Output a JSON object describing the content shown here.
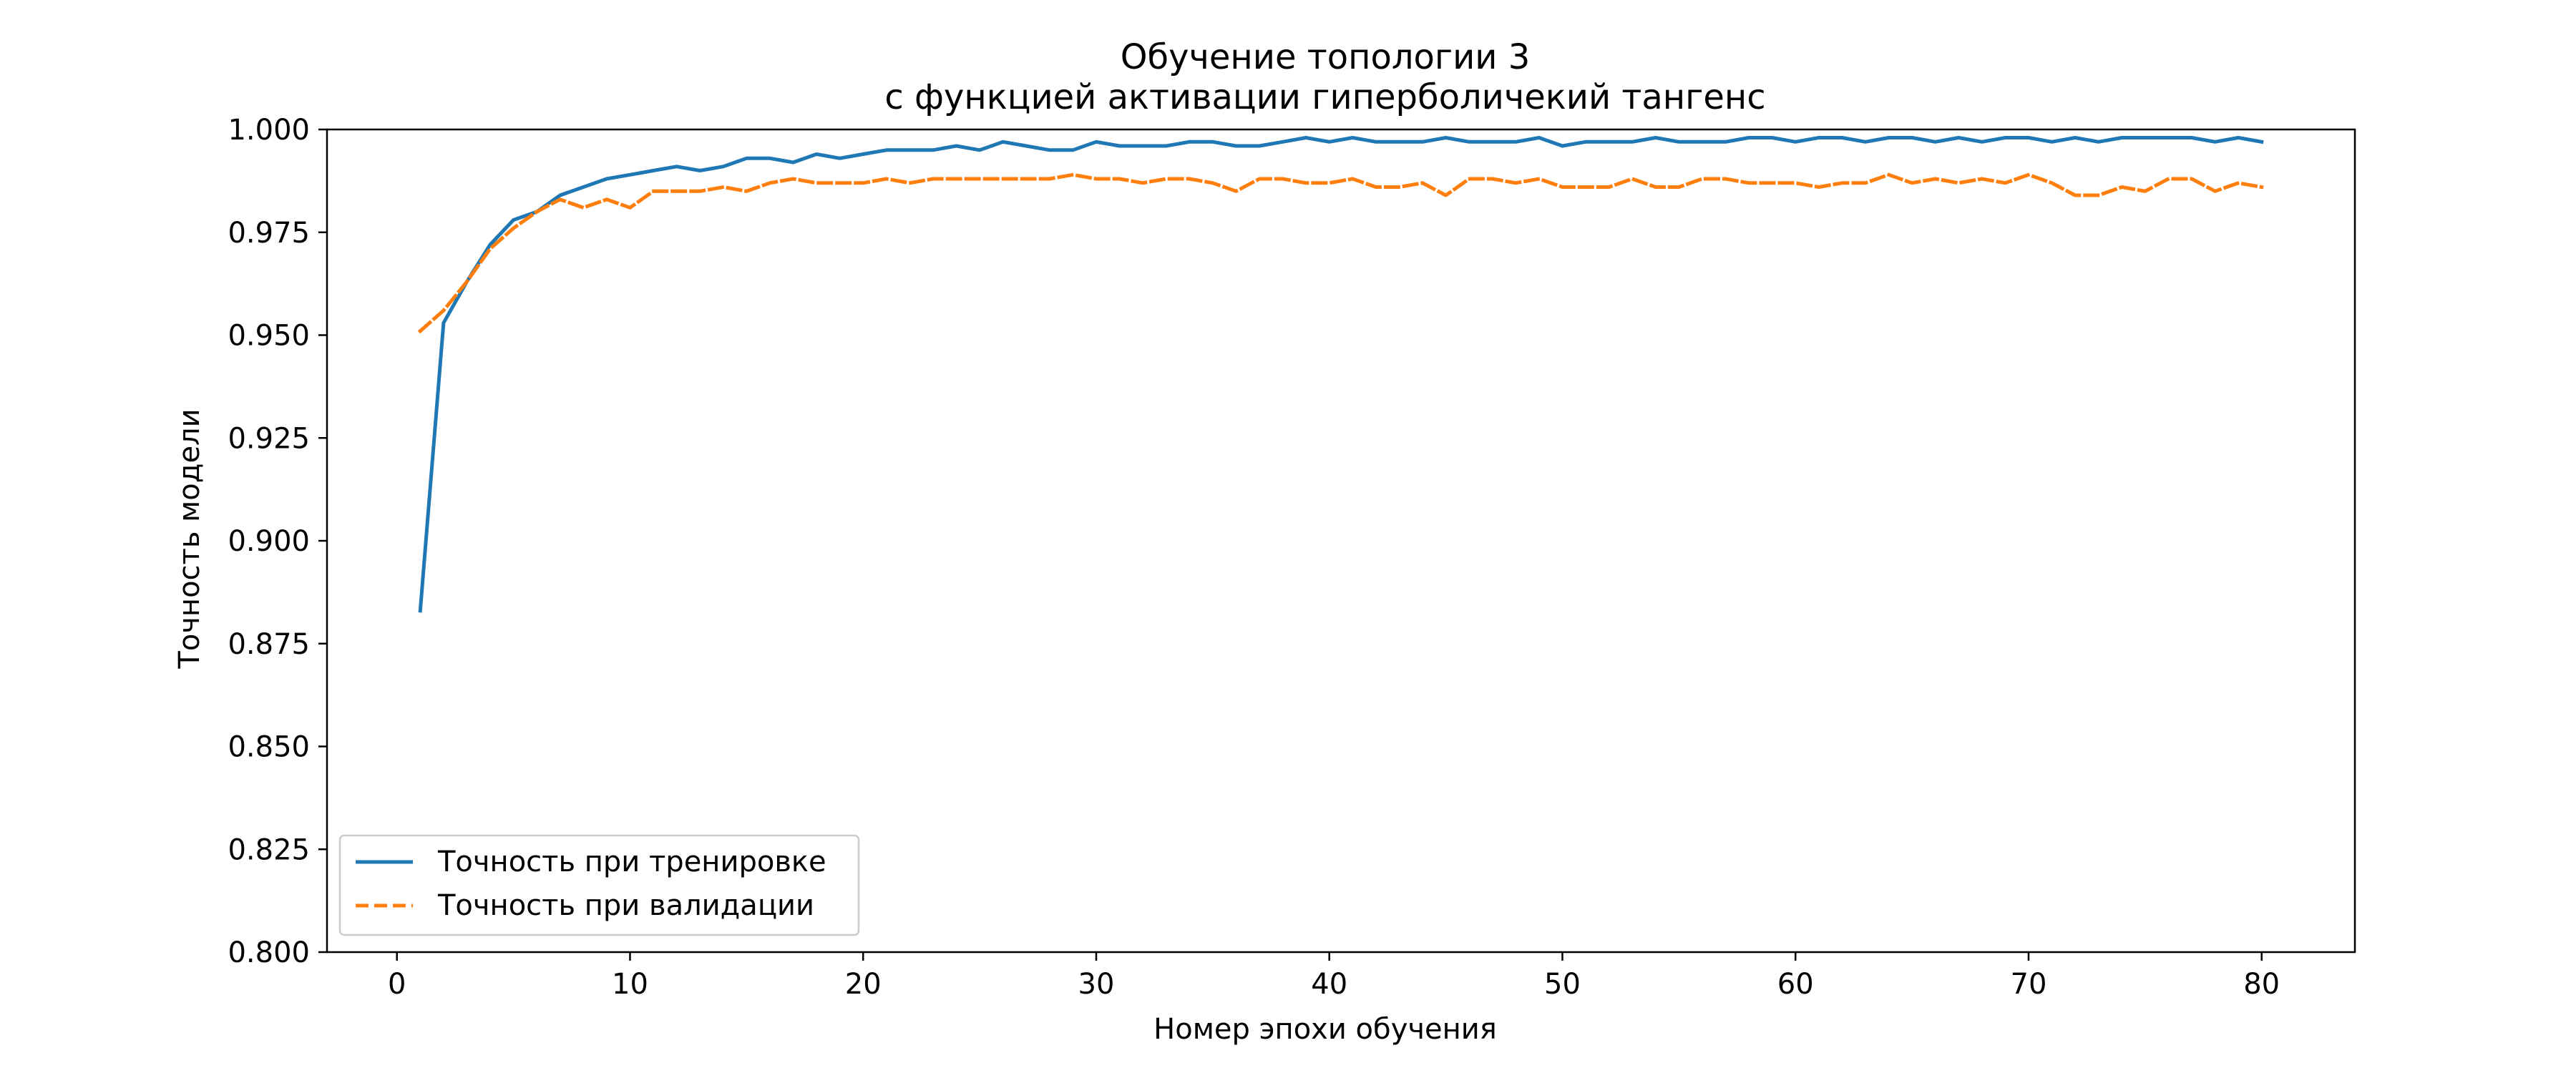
{
  "chart_data": {
    "type": "line",
    "title": "Обучение топологии 3",
    "subtitle": "с функцией активации гиперболичекий тангенс",
    "xlabel": "Номер эпохи обучения",
    "ylabel": "Точность модели",
    "xlim": [
      -3,
      84
    ],
    "ylim": [
      0.8,
      1.0
    ],
    "x_ticks": [
      0,
      10,
      20,
      30,
      40,
      50,
      60,
      70,
      80
    ],
    "y_ticks": [
      0.8,
      0.825,
      0.85,
      0.875,
      0.9,
      0.925,
      0.95,
      0.975,
      1.0
    ],
    "x_tick_labels": [
      "0",
      "10",
      "20",
      "30",
      "40",
      "50",
      "60",
      "70",
      "80"
    ],
    "y_tick_labels": [
      "0.800",
      "0.825",
      "0.850",
      "0.875",
      "0.900",
      "0.925",
      "0.950",
      "0.975",
      "1.000"
    ],
    "grid": false,
    "legend_position": "lower-left",
    "x": [
      1,
      2,
      3,
      4,
      5,
      6,
      7,
      8,
      9,
      10,
      11,
      12,
      13,
      14,
      15,
      16,
      17,
      18,
      19,
      20,
      21,
      22,
      23,
      24,
      25,
      26,
      27,
      28,
      29,
      30,
      31,
      32,
      33,
      34,
      35,
      36,
      37,
      38,
      39,
      40,
      41,
      42,
      43,
      44,
      45,
      46,
      47,
      48,
      49,
      50,
      51,
      52,
      53,
      54,
      55,
      56,
      57,
      58,
      59,
      60,
      61,
      62,
      63,
      64,
      65,
      66,
      67,
      68,
      69,
      70,
      71,
      72,
      73,
      74,
      75,
      76,
      77,
      78,
      79,
      80
    ],
    "series": [
      {
        "name": "Точность при тренировке",
        "color": "#1f77b4",
        "style": "solid",
        "values": [
          0.883,
          0.953,
          0.963,
          0.972,
          0.978,
          0.98,
          0.984,
          0.986,
          0.988,
          0.989,
          0.99,
          0.991,
          0.99,
          0.991,
          0.993,
          0.993,
          0.992,
          0.994,
          0.993,
          0.994,
          0.995,
          0.995,
          0.995,
          0.996,
          0.995,
          0.997,
          0.996,
          0.995,
          0.995,
          0.997,
          0.996,
          0.996,
          0.996,
          0.997,
          0.997,
          0.996,
          0.996,
          0.997,
          0.998,
          0.997,
          0.998,
          0.997,
          0.997,
          0.997,
          0.998,
          0.997,
          0.997,
          0.997,
          0.998,
          0.996,
          0.997,
          0.997,
          0.997,
          0.998,
          0.997,
          0.997,
          0.997,
          0.998,
          0.998,
          0.997,
          0.998,
          0.998,
          0.997,
          0.998,
          0.998,
          0.997,
          0.998,
          0.997,
          0.998,
          0.998,
          0.997,
          0.998,
          0.997,
          0.998,
          0.998,
          0.998,
          0.998,
          0.997,
          0.998,
          0.997
        ]
      },
      {
        "name": "Точность при валидации",
        "color": "#ff7f0e",
        "style": "dashed",
        "values": [
          0.951,
          0.956,
          0.963,
          0.971,
          0.976,
          0.98,
          0.983,
          0.981,
          0.983,
          0.981,
          0.985,
          0.985,
          0.985,
          0.986,
          0.985,
          0.987,
          0.988,
          0.987,
          0.987,
          0.987,
          0.988,
          0.987,
          0.988,
          0.988,
          0.988,
          0.988,
          0.988,
          0.988,
          0.989,
          0.988,
          0.988,
          0.987,
          0.988,
          0.988,
          0.987,
          0.985,
          0.988,
          0.988,
          0.987,
          0.987,
          0.988,
          0.986,
          0.986,
          0.987,
          0.984,
          0.988,
          0.988,
          0.987,
          0.988,
          0.986,
          0.986,
          0.986,
          0.988,
          0.986,
          0.986,
          0.988,
          0.988,
          0.987,
          0.987,
          0.987,
          0.986,
          0.987,
          0.987,
          0.989,
          0.987,
          0.988,
          0.987,
          0.988,
          0.987,
          0.989,
          0.987,
          0.984,
          0.984,
          0.986,
          0.985,
          0.988,
          0.988,
          0.985,
          0.987,
          0.986
        ]
      }
    ]
  }
}
